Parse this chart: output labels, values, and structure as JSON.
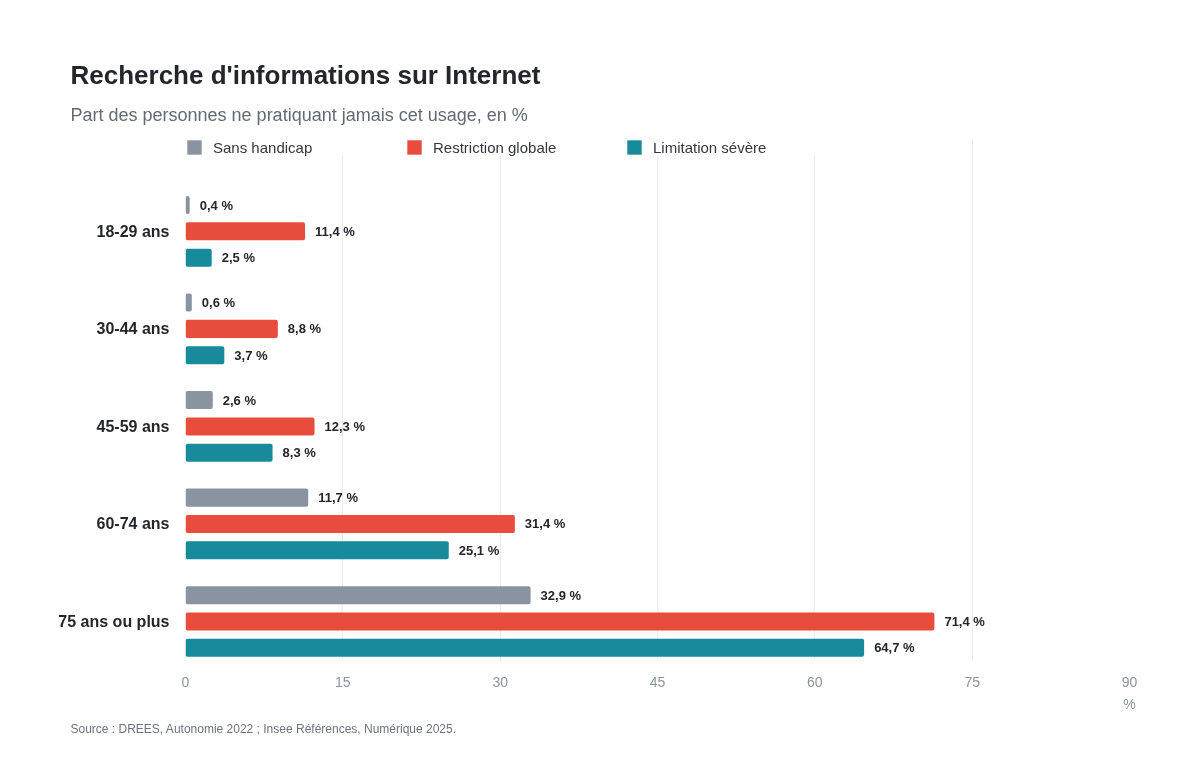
{
  "chart_data": {
    "type": "bar",
    "orientation": "horizontal",
    "title": "Recherche d'informations sur Internet",
    "subtitle": "Part des personnes ne pratiquant jamais cet usage, en %",
    "xlabel": "%",
    "categories": [
      "18-29 ans",
      "30-44 ans",
      "45-59 ans",
      "60-74 ans",
      "75 ans ou plus"
    ],
    "series": [
      {
        "name": "Sans handicap",
        "color": "#8a94a0",
        "values": [
          0.4,
          0.6,
          2.6,
          11.7,
          32.9
        ],
        "value_labels": [
          "0,4 %",
          "0,6 %",
          "2,6 %",
          "11,7 %",
          "32,9 %"
        ]
      },
      {
        "name": "Restriction globale",
        "color": "#e74c3c",
        "values": [
          11.4,
          8.8,
          12.3,
          31.4,
          71.4
        ],
        "value_labels": [
          "11,4 %",
          "8,8 %",
          "12,3 %",
          "31,4 %",
          "71,4 %"
        ]
      },
      {
        "name": "Limitation sévère",
        "color": "#178b9c",
        "values": [
          2.5,
          3.7,
          8.3,
          25.1,
          64.7
        ],
        "value_labels": [
          "2,5 %",
          "3,7 %",
          "8,3 %",
          "25,1 %",
          "64,7 %"
        ]
      }
    ],
    "xlim": [
      0,
      90
    ],
    "xticks": [
      0,
      15,
      30,
      45,
      60,
      75,
      90
    ],
    "grid": "x",
    "legend": "top left",
    "annotations": [
      "Source : DREES, Autonomie 2022 ; Insee Références, Numérique 2025."
    ]
  }
}
